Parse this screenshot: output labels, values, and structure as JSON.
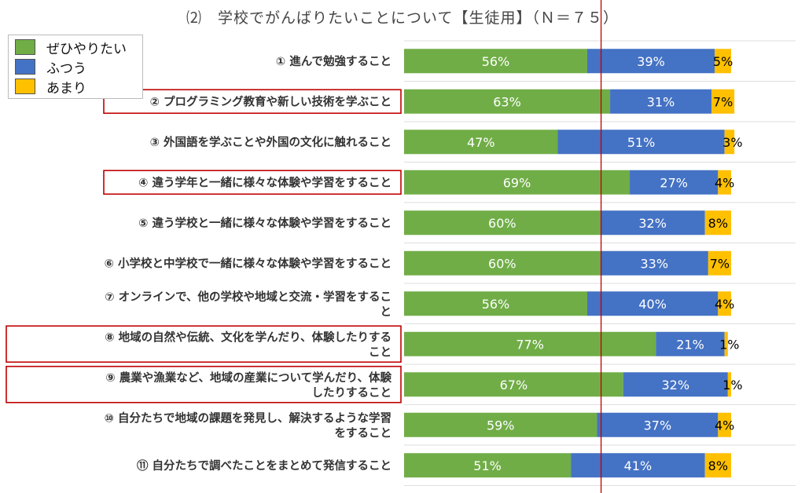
{
  "chart_data": {
    "type": "bar",
    "stacked": true,
    "orientation": "horizontal",
    "title": "⑵　学校でがんばりたいことについて【生徒用】（Ｎ＝７５）",
    "categories": [
      "① 進んで勉強すること",
      "② プログラミング教育や新しい技術を学ぶこと",
      "③ 外国語を学ぶことや外国の文化に触れること",
      "④ 違う学年と一緒に様々な体験や学習をすること",
      "⑤ 違う学校と一緒に様々な体験や学習をすること",
      "⑥ 小学校と中学校で一緒に様々な体験や学習をすること",
      "⑦ オンラインで、他の学校や地域と交流・学習をすること",
      "⑧ 地域の自然や伝統、文化を学んだり、体験したりすること",
      "⑨ 農業や漁業など、地域の産業について学んだり、体験したりすること",
      "⑩ 自分たちで地域の課題を発見し、解決するような学習をすること",
      "⑪ 自分たちで調べたことをまとめて発信すること"
    ],
    "highlighted": [
      1,
      3,
      7,
      8
    ],
    "series": [
      {
        "name": "ぜひやりたい",
        "color": "#70ad47",
        "values": [
          56,
          63,
          47,
          69,
          60,
          60,
          56,
          77,
          67,
          59,
          51
        ]
      },
      {
        "name": "ふつう",
        "color": "#4472c4",
        "values": [
          39,
          31,
          51,
          27,
          32,
          33,
          40,
          21,
          32,
          37,
          41
        ]
      },
      {
        "name": "あまり",
        "color": "#ffc000",
        "values": [
          5,
          7,
          3,
          4,
          8,
          7,
          4,
          1,
          1,
          4,
          8
        ]
      }
    ],
    "value_suffix": "%",
    "xlim": [
      0,
      100
    ],
    "reference_line_value": 60,
    "reference_line_color": "#c00000",
    "highlight_box_color": "#c00000",
    "legend_position": "top-left",
    "grid": true
  }
}
